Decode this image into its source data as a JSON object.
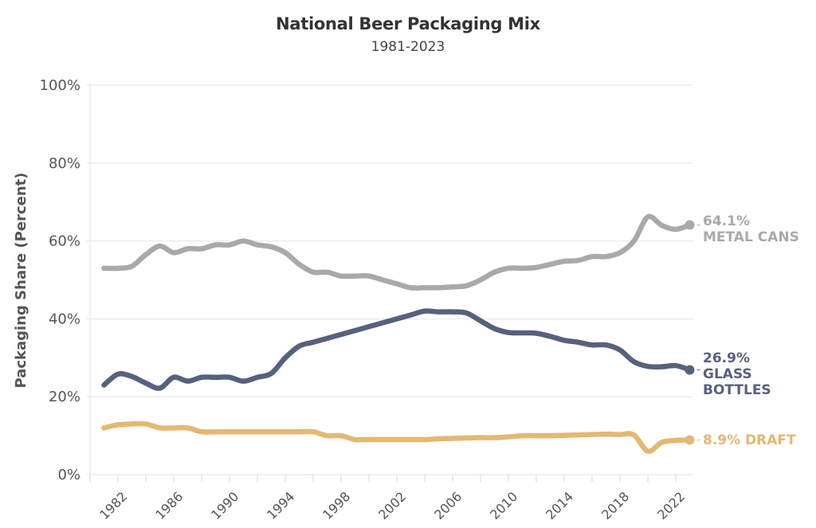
{
  "chart_data": {
    "type": "line",
    "title": "National Beer Packaging Mix",
    "subtitle": "1981-2023",
    "xlabel": "",
    "ylabel": "Packaging Share (Percent)",
    "xlim": [
      1981,
      2023
    ],
    "ylim": [
      0,
      100
    ],
    "grid": true,
    "yticks": [
      0,
      20,
      40,
      60,
      80,
      100
    ],
    "ytick_labels": [
      "0%",
      "20%",
      "40%",
      "60%",
      "80%",
      "100%"
    ],
    "xticks": [
      1982,
      1986,
      1990,
      1994,
      1998,
      2002,
      2006,
      2010,
      2014,
      2018,
      2022
    ],
    "xtick_labels": [
      "1982",
      "1986",
      "1990",
      "1994",
      "1998",
      "2002",
      "2006",
      "2010",
      "2014",
      "2018",
      "2022"
    ],
    "x": [
      1981,
      1982,
      1983,
      1984,
      1985,
      1986,
      1987,
      1988,
      1989,
      1990,
      1991,
      1992,
      1993,
      1994,
      1995,
      1996,
      1997,
      1998,
      1999,
      2000,
      2001,
      2002,
      2003,
      2004,
      2005,
      2006,
      2007,
      2008,
      2009,
      2010,
      2011,
      2012,
      2013,
      2014,
      2015,
      2016,
      2017,
      2018,
      2019,
      2020,
      2021,
      2022,
      2023
    ],
    "series": [
      {
        "name": "Metal Cans",
        "color": "#a9a9a9",
        "end_value_label": "64.1%",
        "end_name_label": [
          "METAL CANS"
        ],
        "values": [
          53,
          53,
          53.5,
          56.5,
          58.7,
          57,
          58,
          58,
          59,
          59,
          60,
          59,
          58.5,
          57,
          54,
          52,
          52,
          51,
          51,
          51,
          50,
          49,
          48,
          48,
          48,
          48.2,
          48.5,
          50,
          52,
          53,
          53,
          53.2,
          54,
          54.8,
          55,
          56,
          56,
          57,
          60,
          66.2,
          64,
          63,
          64.1
        ]
      },
      {
        "name": "Glass Bottles",
        "color": "#56617e",
        "end_value_label": "26.9%",
        "end_name_label": [
          "GLASS",
          "BOTTLES"
        ],
        "values": [
          23,
          25.8,
          25.2,
          23.5,
          22.2,
          25,
          24,
          25,
          25,
          25,
          24,
          25,
          26,
          30,
          33,
          34,
          35,
          36,
          37,
          38,
          39,
          40,
          41,
          42,
          41.8,
          41.8,
          41.5,
          39.5,
          37.5,
          36.5,
          36.4,
          36.3,
          35.5,
          34.5,
          34,
          33.3,
          33.3,
          32,
          29,
          27.8,
          27.7,
          28,
          26.9
        ]
      },
      {
        "name": "Draft",
        "color": "#e3b872",
        "end_value_label": "8.9%",
        "end_name_label": [
          "DRAFT"
        ],
        "values": [
          12,
          12.8,
          13,
          13,
          12,
          12,
          12,
          11,
          11,
          11,
          11,
          11,
          11,
          11,
          11,
          11,
          10,
          10,
          9,
          9,
          9,
          9,
          9,
          9,
          9.2,
          9.3,
          9.4,
          9.5,
          9.5,
          9.7,
          10,
          10,
          10,
          10.1,
          10.2,
          10.3,
          10.4,
          10.3,
          10.2,
          6,
          8.3,
          8.8,
          8.9
        ]
      }
    ]
  }
}
